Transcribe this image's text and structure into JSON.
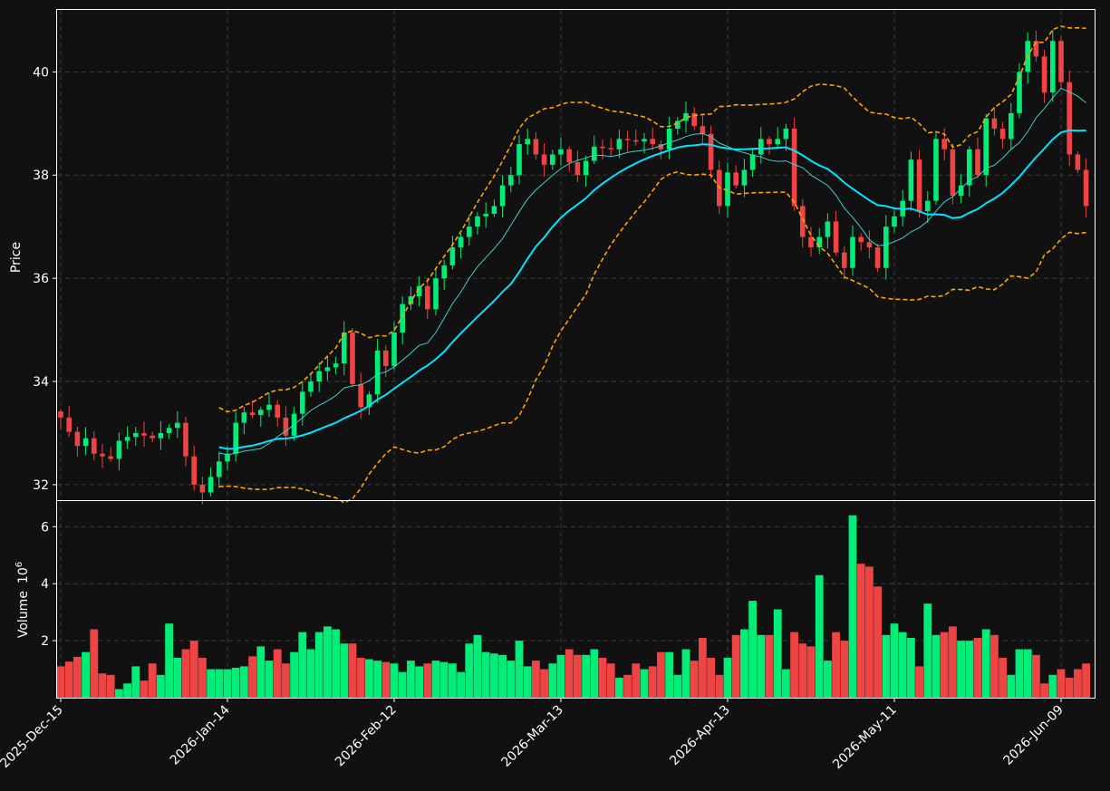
{
  "theme": {
    "background": "#111111",
    "panel_border": "#ffffff",
    "grid": "#3a3a3a",
    "text": "#ffffff",
    "up_color": "#00ee77",
    "down_color": "#ee4444",
    "mid_band_color": "#00e5ff",
    "fast_ma_color": "#40d0c8",
    "band_color": "#ffa500"
  },
  "chart_data": {
    "type": "candlestick",
    "title": "",
    "ylabel": "Price",
    "volume_ylabel": "Volume",
    "volume_exponent_label": "10",
    "volume_exponent_power": "6",
    "ylim": [
      31.7,
      41.2
    ],
    "volume_ylim": [
      0,
      6.9
    ],
    "yticks": [
      "32",
      "34",
      "36",
      "38",
      "40"
    ],
    "volume_yticks": [
      "2",
      "4",
      "6"
    ],
    "x_tick_labels": [
      "2025-Dec-15",
      "2026-Jan-14",
      "2026-Feb-12",
      "2026-Mar-13",
      "2026-Apr-13",
      "2026-May-11",
      "2026-Jun-09"
    ],
    "x_tick_index": [
      0,
      20,
      40,
      60,
      80,
      100,
      120
    ],
    "n_bars": 124,
    "grid": true,
    "close_anchors": [
      [
        0,
        33.3
      ],
      [
        2,
        32.75
      ],
      [
        3,
        32.9
      ],
      [
        4,
        32.6
      ],
      [
        6,
        32.5
      ],
      [
        7,
        32.85
      ],
      [
        9,
        33.0
      ],
      [
        11,
        32.9
      ],
      [
        13,
        33.1
      ],
      [
        14,
        33.2
      ],
      [
        15,
        32.55
      ],
      [
        16,
        32.0
      ],
      [
        17,
        31.85
      ],
      [
        18,
        32.15
      ],
      [
        19,
        32.45
      ],
      [
        20,
        32.6
      ],
      [
        21,
        33.2
      ],
      [
        22,
        33.4
      ],
      [
        23,
        33.35
      ],
      [
        25,
        33.55
      ],
      [
        26,
        33.3
      ],
      [
        27,
        32.95
      ],
      [
        29,
        33.8
      ],
      [
        31,
        34.2
      ],
      [
        33,
        34.35
      ],
      [
        34,
        34.95
      ],
      [
        35,
        33.95
      ],
      [
        36,
        33.5
      ],
      [
        37,
        33.75
      ],
      [
        38,
        34.6
      ],
      [
        39,
        34.3
      ],
      [
        40,
        34.95
      ],
      [
        41,
        35.5
      ],
      [
        42,
        35.65
      ],
      [
        43,
        35.85
      ],
      [
        44,
        35.4
      ],
      [
        45,
        36.0
      ],
      [
        46,
        36.25
      ],
      [
        47,
        36.6
      ],
      [
        48,
        36.8
      ],
      [
        49,
        37.0
      ],
      [
        50,
        37.2
      ],
      [
        51,
        37.25
      ],
      [
        52,
        37.4
      ],
      [
        53,
        37.8
      ],
      [
        54,
        38.0
      ],
      [
        55,
        38.6
      ],
      [
        56,
        38.7
      ],
      [
        57,
        38.4
      ],
      [
        58,
        38.2
      ],
      [
        59,
        38.4
      ],
      [
        60,
        38.5
      ],
      [
        62,
        38.0
      ],
      [
        64,
        38.55
      ],
      [
        66,
        38.5
      ],
      [
        67,
        38.7
      ],
      [
        69,
        38.65
      ],
      [
        70,
        38.7
      ],
      [
        71,
        38.6
      ],
      [
        72,
        38.5
      ],
      [
        73,
        38.9
      ],
      [
        74,
        39.05
      ],
      [
        75,
        39.2
      ],
      [
        76,
        38.95
      ],
      [
        77,
        38.8
      ],
      [
        78,
        38.1
      ],
      [
        79,
        37.4
      ],
      [
        80,
        38.05
      ],
      [
        81,
        37.8
      ],
      [
        82,
        38.1
      ],
      [
        83,
        38.4
      ],
      [
        84,
        38.7
      ],
      [
        85,
        38.6
      ],
      [
        86,
        38.7
      ],
      [
        87,
        38.9
      ],
      [
        88,
        37.4
      ],
      [
        89,
        36.8
      ],
      [
        90,
        36.6
      ],
      [
        91,
        36.8
      ],
      [
        92,
        37.1
      ],
      [
        93,
        36.5
      ],
      [
        94,
        36.2
      ],
      [
        95,
        36.8
      ],
      [
        97,
        36.6
      ],
      [
        98,
        36.2
      ],
      [
        99,
        37.0
      ],
      [
        100,
        37.2
      ],
      [
        101,
        37.5
      ],
      [
        102,
        38.3
      ],
      [
        103,
        37.3
      ],
      [
        104,
        37.5
      ],
      [
        105,
        38.7
      ],
      [
        106,
        38.5
      ],
      [
        107,
        37.6
      ],
      [
        108,
        37.8
      ],
      [
        109,
        38.5
      ],
      [
        110,
        38.0
      ],
      [
        111,
        39.1
      ],
      [
        112,
        38.9
      ],
      [
        113,
        38.7
      ],
      [
        114,
        39.2
      ],
      [
        115,
        40.0
      ],
      [
        116,
        40.6
      ],
      [
        117,
        40.3
      ],
      [
        118,
        39.6
      ],
      [
        119,
        40.6
      ],
      [
        120,
        39.8
      ],
      [
        121,
        38.4
      ],
      [
        122,
        38.1
      ],
      [
        123,
        37.4
      ]
    ],
    "volume_anchors": [
      [
        0,
        1.1
      ],
      [
        3,
        1.6
      ],
      [
        4,
        2.4
      ],
      [
        5,
        0.85
      ],
      [
        6,
        0.8
      ],
      [
        7,
        0.3
      ],
      [
        8,
        0.5
      ],
      [
        9,
        1.1
      ],
      [
        10,
        0.6
      ],
      [
        11,
        1.2
      ],
      [
        12,
        0.8
      ],
      [
        13,
        2.6
      ],
      [
        14,
        1.4
      ],
      [
        16,
        2.0
      ],
      [
        17,
        1.4
      ],
      [
        18,
        1.0
      ],
      [
        20,
        1.0
      ],
      [
        22,
        1.1
      ],
      [
        24,
        1.8
      ],
      [
        25,
        1.3
      ],
      [
        26,
        1.7
      ],
      [
        27,
        1.2
      ],
      [
        28,
        1.6
      ],
      [
        29,
        2.3
      ],
      [
        30,
        1.7
      ],
      [
        31,
        2.3
      ],
      [
        32,
        2.5
      ],
      [
        33,
        2.4
      ],
      [
        34,
        1.9
      ],
      [
        35,
        1.9
      ],
      [
        36,
        1.4
      ],
      [
        38,
        1.3
      ],
      [
        40,
        1.2
      ],
      [
        41,
        0.9
      ],
      [
        42,
        1.3
      ],
      [
        43,
        1.1
      ],
      [
        45,
        1.3
      ],
      [
        47,
        1.2
      ],
      [
        48,
        0.9
      ],
      [
        49,
        1.9
      ],
      [
        50,
        2.2
      ],
      [
        51,
        1.6
      ],
      [
        53,
        1.5
      ],
      [
        54,
        1.3
      ],
      [
        55,
        2.0
      ],
      [
        56,
        1.1
      ],
      [
        57,
        1.3
      ],
      [
        58,
        1.0
      ],
      [
        59,
        1.2
      ],
      [
        60,
        1.5
      ],
      [
        61,
        1.7
      ],
      [
        62,
        1.5
      ],
      [
        63,
        1.5
      ],
      [
        64,
        1.7
      ],
      [
        65,
        1.4
      ],
      [
        66,
        1.2
      ],
      [
        67,
        0.7
      ],
      [
        68,
        0.8
      ],
      [
        69,
        1.2
      ],
      [
        70,
        1.0
      ],
      [
        71,
        1.1
      ],
      [
        72,
        1.6
      ],
      [
        73,
        1.6
      ],
      [
        74,
        0.8
      ],
      [
        75,
        1.7
      ],
      [
        76,
        1.3
      ],
      [
        77,
        2.1
      ],
      [
        78,
        1.4
      ],
      [
        79,
        0.8
      ],
      [
        80,
        1.4
      ],
      [
        81,
        2.2
      ],
      [
        82,
        2.4
      ],
      [
        83,
        3.4
      ],
      [
        84,
        2.2
      ],
      [
        85,
        2.2
      ],
      [
        86,
        3.1
      ],
      [
        87,
        1.0
      ],
      [
        88,
        2.3
      ],
      [
        89,
        1.9
      ],
      [
        90,
        1.8
      ],
      [
        91,
        4.3
      ],
      [
        92,
        1.3
      ],
      [
        93,
        2.3
      ],
      [
        94,
        2.0
      ],
      [
        95,
        6.4
      ],
      [
        96,
        4.7
      ],
      [
        97,
        4.6
      ],
      [
        98,
        3.9
      ],
      [
        99,
        2.2
      ],
      [
        100,
        2.6
      ],
      [
        101,
        2.3
      ],
      [
        102,
        2.1
      ],
      [
        103,
        1.1
      ],
      [
        104,
        3.3
      ],
      [
        105,
        2.2
      ],
      [
        106,
        2.3
      ],
      [
        107,
        2.5
      ],
      [
        108,
        2.0
      ],
      [
        109,
        2.0
      ],
      [
        110,
        2.1
      ],
      [
        111,
        2.4
      ],
      [
        112,
        2.2
      ],
      [
        113,
        1.4
      ],
      [
        114,
        0.8
      ],
      [
        115,
        1.7
      ],
      [
        116,
        1.7
      ],
      [
        117,
        1.5
      ],
      [
        118,
        0.5
      ],
      [
        119,
        0.8
      ],
      [
        120,
        1.0
      ],
      [
        121,
        0.7
      ],
      [
        122,
        1.0
      ],
      [
        123,
        1.2
      ]
    ],
    "indicators": {
      "bollinger_window": 20,
      "fast_ma_window": 10
    }
  }
}
